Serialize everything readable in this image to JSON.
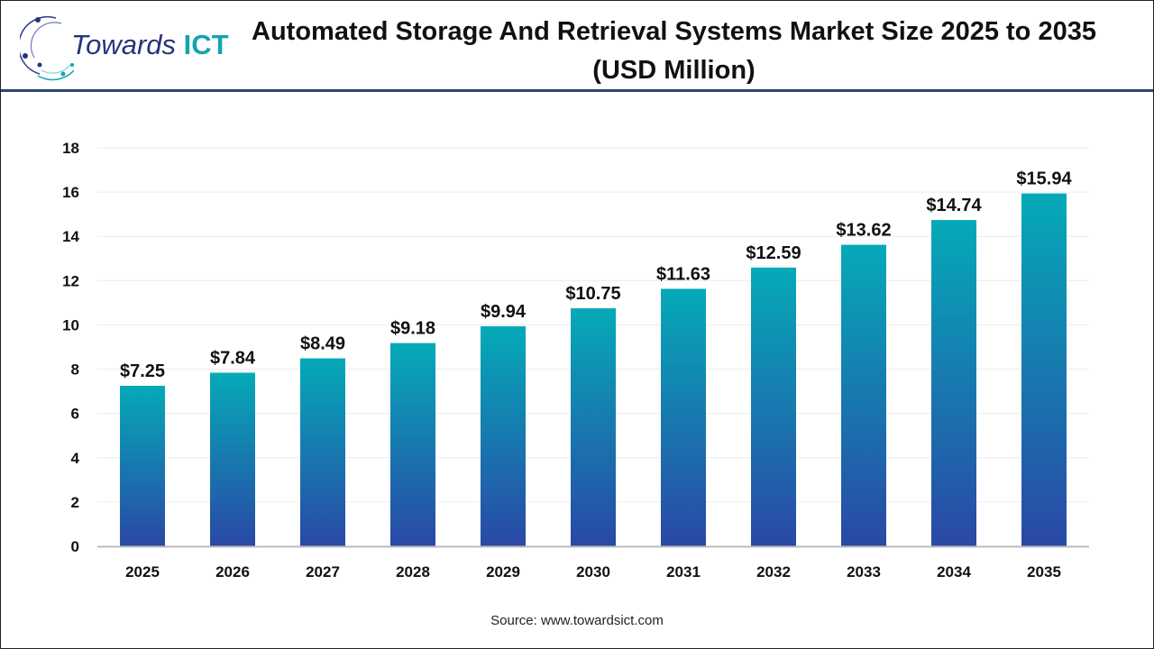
{
  "logo": {
    "text_part1": "Towards",
    "text_part2": "ICT"
  },
  "colors": {
    "bar_top": "#05aab8",
    "bar_bottom": "#2a48a6",
    "header_line": "#2f4468",
    "logo_blue": "#27347a",
    "logo_teal": "#14a3b0"
  },
  "chart_data": {
    "type": "bar",
    "title": "Automated Storage And Retrieval Systems Market Size 2025 to 2035 (USD Million)",
    "categories": [
      "2025",
      "2026",
      "2027",
      "2028",
      "2029",
      "2030",
      "2031",
      "2032",
      "2033",
      "2034",
      "2035"
    ],
    "values": [
      7.25,
      7.84,
      8.49,
      9.18,
      9.94,
      10.75,
      11.63,
      12.59,
      13.62,
      14.74,
      15.94
    ],
    "data_labels": [
      "$7.25",
      "$7.84",
      "$8.49",
      "$9.18",
      "$9.94",
      "$10.75",
      "$11.63",
      "$12.59",
      "$13.62",
      "$14.74",
      "$15.94"
    ],
    "xlabel": "",
    "ylabel": "",
    "ylim": [
      0,
      18
    ],
    "yticks": [
      0,
      2,
      4,
      6,
      8,
      10,
      12,
      14,
      16,
      18
    ],
    "grid": true,
    "legend": "none"
  },
  "source": "Source: www.towardsict.com"
}
